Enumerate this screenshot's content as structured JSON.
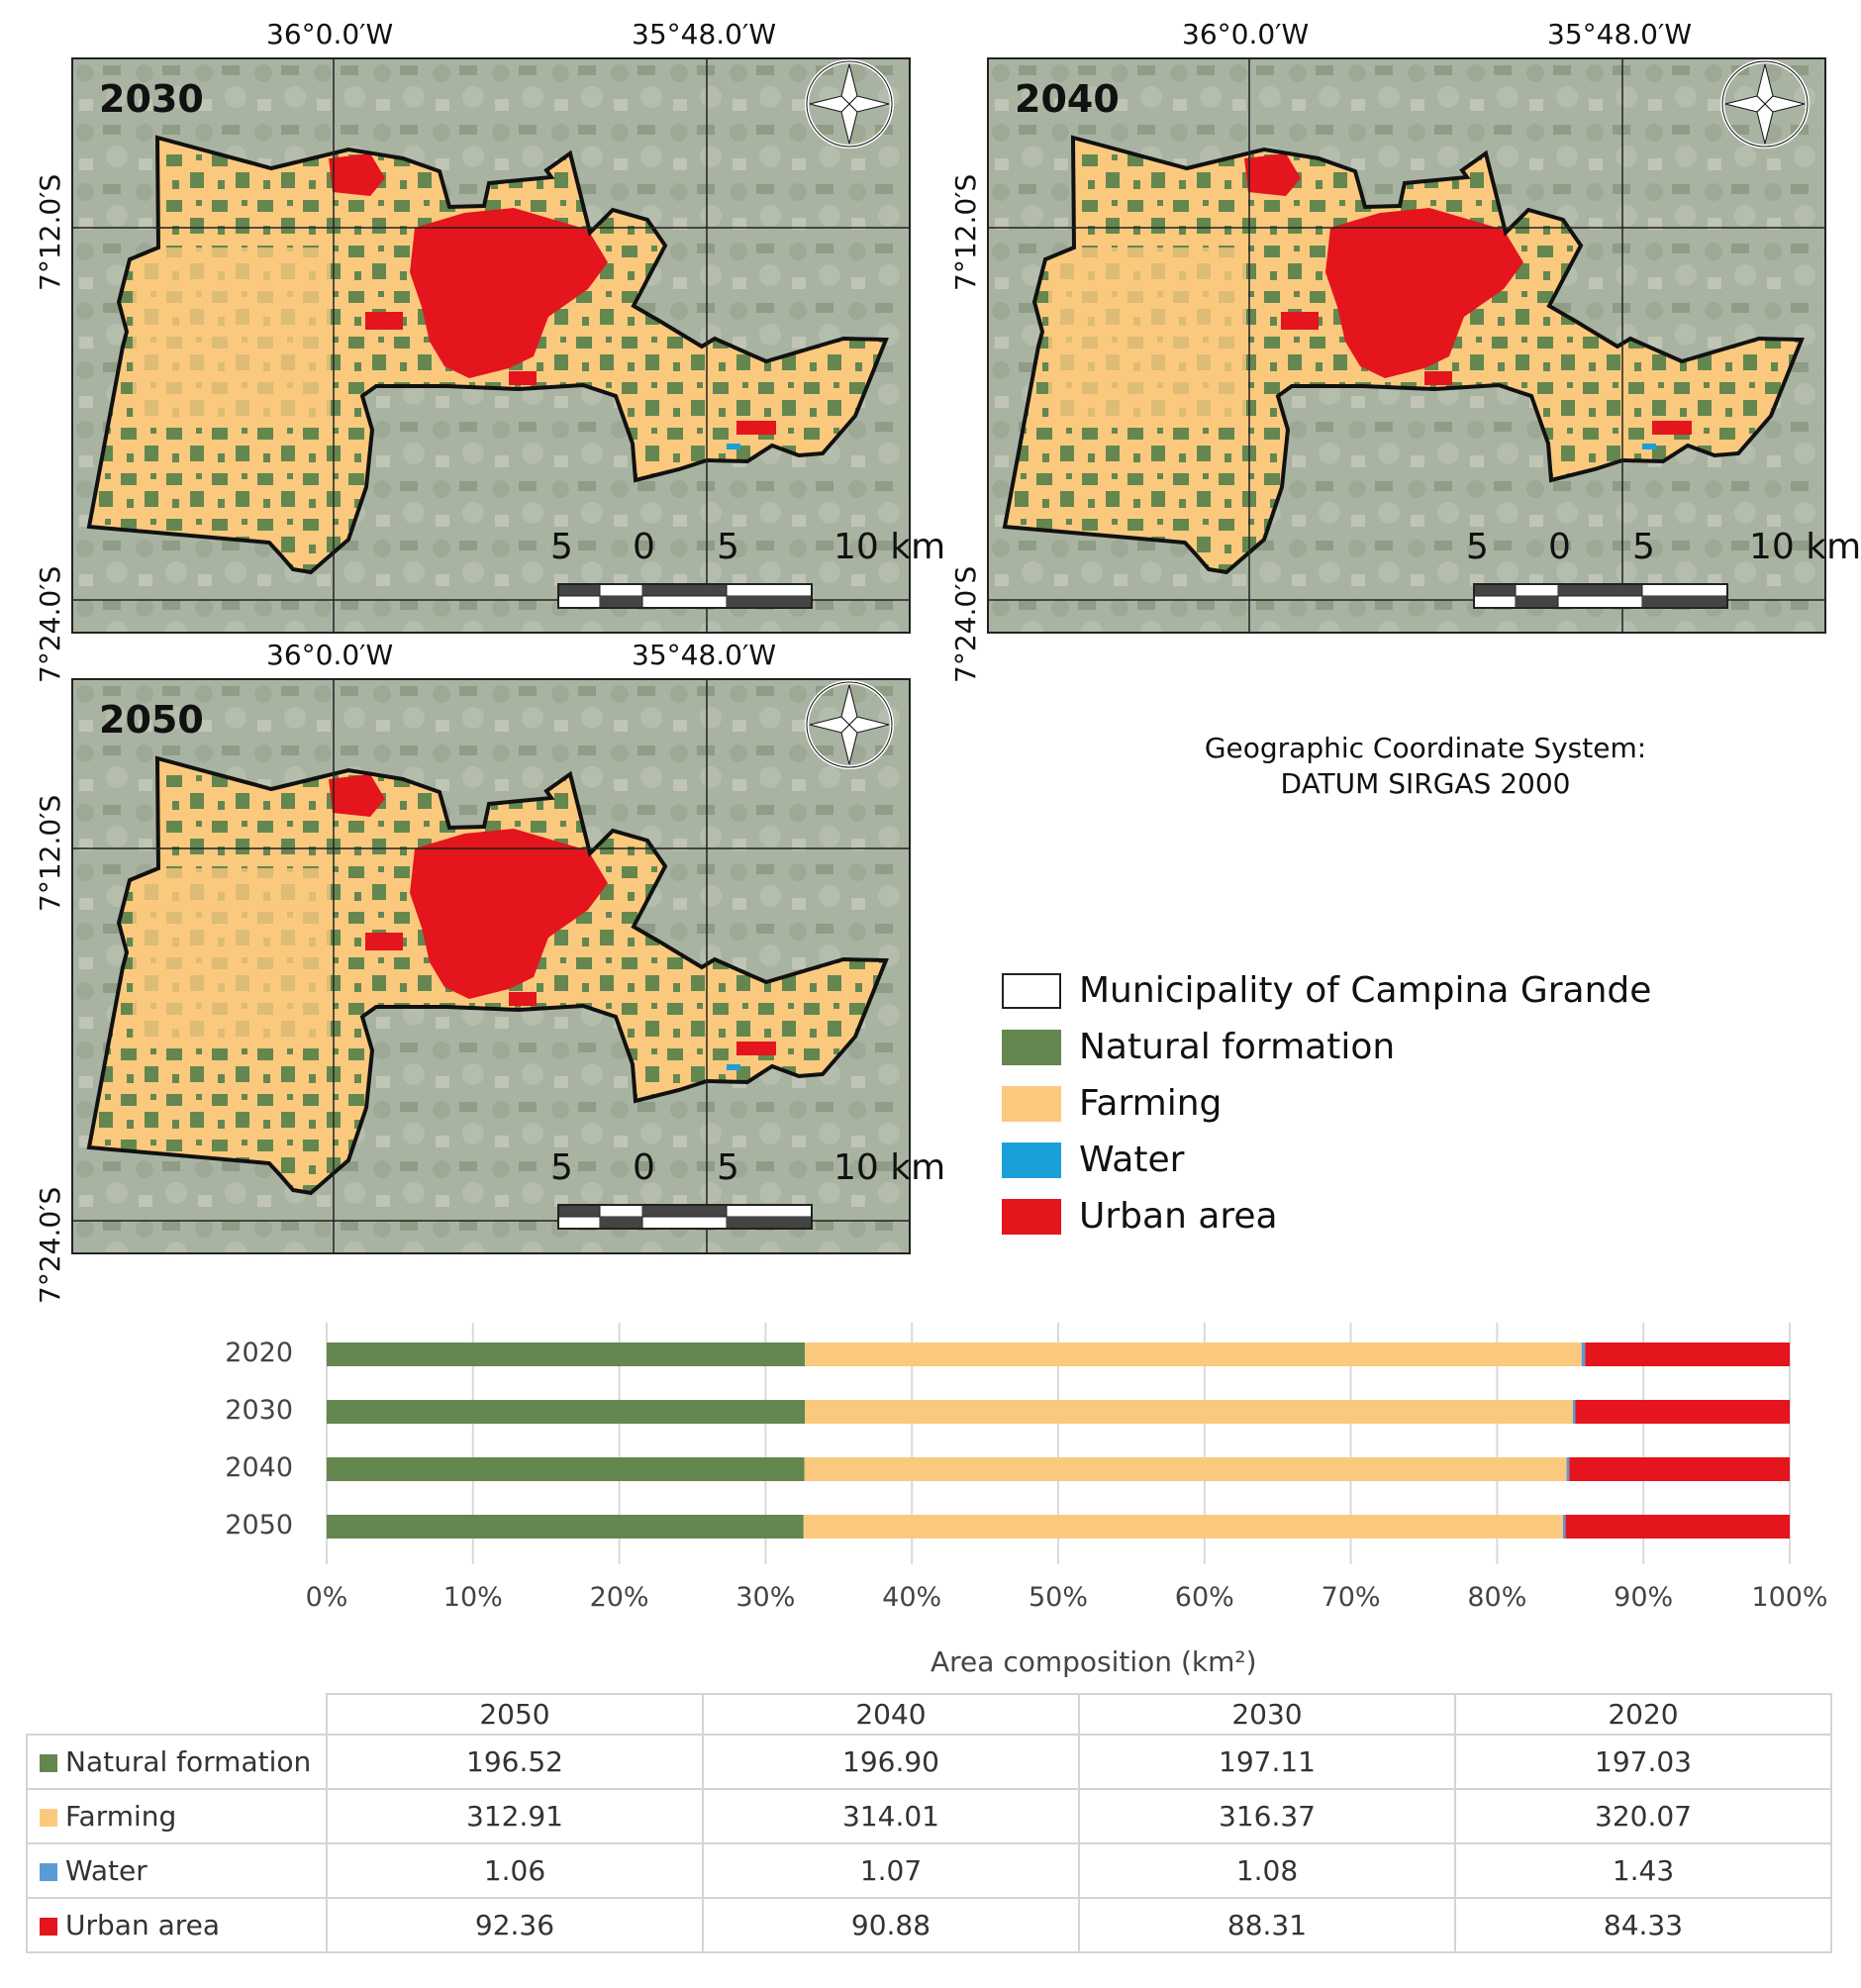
{
  "maps": {
    "lon_labels": [
      "36°0.0′W",
      "35°48.0′W"
    ],
    "lat_labels": [
      "7°12.0′S",
      "7°24.0′S"
    ],
    "scale_labels": [
      "5",
      "0",
      "5",
      "10 km"
    ],
    "panels": [
      {
        "year": "2030"
      },
      {
        "year": "2040"
      },
      {
        "year": "2050"
      }
    ]
  },
  "crs": {
    "line1": "Geographic Coordinate System:",
    "line2": "DATUM SIRGAS 2000"
  },
  "legend": [
    {
      "label": "Municipality of Campina Grande",
      "color": "#ffffff"
    },
    {
      "label": "Natural formation",
      "color": "#64874f"
    },
    {
      "label": "Farming",
      "color": "#fbc97e"
    },
    {
      "label": "Water",
      "color": "#1aa0d8"
    },
    {
      "label": "Urban area",
      "color": "#e4151c"
    }
  ],
  "chart_data": {
    "type": "bar",
    "orientation": "horizontal",
    "stacked": "percent",
    "categories": [
      "2020",
      "2030",
      "2040",
      "2050"
    ],
    "series": [
      {
        "name": "Natural formation",
        "color": "#64874f",
        "values": [
          197.03,
          197.11,
          196.9,
          196.52
        ]
      },
      {
        "name": "Farming",
        "color": "#fbc97e",
        "values": [
          320.07,
          316.37,
          314.01,
          312.91
        ]
      },
      {
        "name": "Water",
        "color": "#5b9bd5",
        "values": [
          1.43,
          1.08,
          1.07,
          1.06
        ]
      },
      {
        "name": "Urban area",
        "color": "#e4151c",
        "values": [
          84.33,
          88.31,
          90.88,
          92.36
        ]
      }
    ],
    "xticks": [
      "0%",
      "10%",
      "20%",
      "30%",
      "40%",
      "50%",
      "60%",
      "70%",
      "80%",
      "90%",
      "100%"
    ],
    "xlabel": "Area composition (km²)",
    "xlim": [
      0,
      100
    ],
    "grid": true
  },
  "table": {
    "headers": [
      "2050",
      "2040",
      "2030",
      "2020"
    ],
    "rows": [
      {
        "label": "Natural formation",
        "color": "#64874f",
        "values": [
          "196.52",
          "196.90",
          "197.11",
          "197.03"
        ]
      },
      {
        "label": "Farming",
        "color": "#fbc97e",
        "values": [
          "312.91",
          "314.01",
          "316.37",
          "320.07"
        ]
      },
      {
        "label": "Water",
        "color": "#5b9bd5",
        "values": [
          "1.06",
          "1.07",
          "1.08",
          "1.43"
        ]
      },
      {
        "label": "Urban area",
        "color": "#e4151c",
        "values": [
          "92.36",
          "90.88",
          "88.31",
          "84.33"
        ]
      }
    ]
  }
}
